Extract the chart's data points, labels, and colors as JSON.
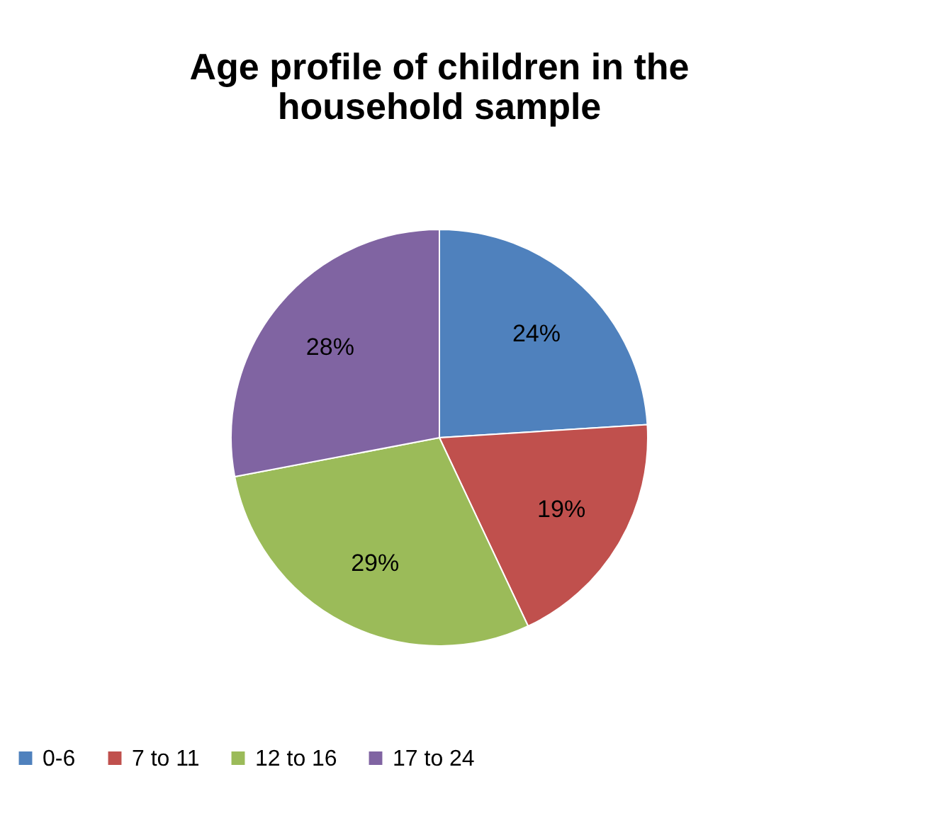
{
  "chart_data": {
    "type": "pie",
    "title": "Age profile of children in the household sample",
    "categories": [
      "0-6",
      "7 to 11",
      "12 to 16",
      "17 to 24"
    ],
    "values": [
      24,
      19,
      29,
      28
    ],
    "colors": [
      "#4f81bd",
      "#c0504d",
      "#9bbb59",
      "#8064a2"
    ],
    "value_labels": [
      "24%",
      "19%",
      "29%",
      "28%"
    ],
    "legend": "bottom"
  }
}
